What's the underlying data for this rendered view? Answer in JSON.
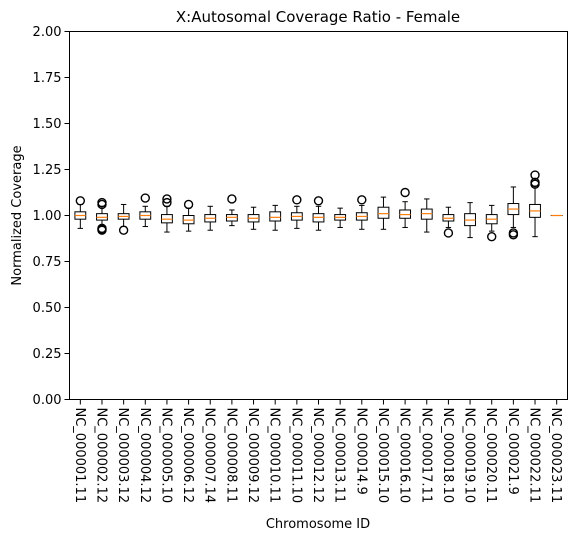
{
  "chart_data": {
    "type": "box",
    "title": "X:Autosomal Coverage Ratio - Female",
    "xlabel": "Chromosome ID",
    "ylabel": "Normalized Coverage",
    "ylim": [
      0,
      2
    ],
    "yticks": [
      "0.00",
      "0.25",
      "0.50",
      "0.75",
      "1.00",
      "1.25",
      "1.50",
      "1.75",
      "2.00"
    ],
    "grid": false,
    "colors": {
      "box": "#000000",
      "median": "#ff7f0e",
      "flier": "#000000"
    },
    "categories": [
      "NC_000001.11",
      "NC_000002.12",
      "NC_000003.12",
      "NC_000004.12",
      "NC_000005.10",
      "NC_000006.12",
      "NC_000007.14",
      "NC_000008.11",
      "NC_000009.12",
      "NC_000010.11",
      "NC_000011.10",
      "NC_000012.12",
      "NC_000013.11",
      "NC_000014.9",
      "NC_000015.10",
      "NC_000016.10",
      "NC_000017.11",
      "NC_000018.10",
      "NC_000019.10",
      "NC_000020.11",
      "NC_000021.9",
      "NC_000022.11",
      "NC_000023.11"
    ],
    "boxes": [
      {
        "whislo": 0.93,
        "q1": 0.98,
        "med": 1.0,
        "q3": 1.02,
        "whishi": 1.06,
        "fliers": [
          1.08
        ]
      },
      {
        "whislo": 0.94,
        "q1": 0.975,
        "med": 0.99,
        "q3": 1.01,
        "whishi": 1.05,
        "fliers": [
          1.07,
          1.06,
          0.93,
          0.925,
          0.92
        ]
      },
      {
        "whislo": 0.94,
        "q1": 0.98,
        "med": 0.995,
        "q3": 1.01,
        "whishi": 1.06,
        "fliers": [
          0.92
        ]
      },
      {
        "whislo": 0.94,
        "q1": 0.98,
        "med": 1.0,
        "q3": 1.02,
        "whishi": 1.05,
        "fliers": [
          1.095
        ]
      },
      {
        "whislo": 0.91,
        "q1": 0.96,
        "med": 0.98,
        "q3": 1.005,
        "whishi": 1.05,
        "fliers": [
          1.09,
          1.07
        ]
      },
      {
        "whislo": 0.915,
        "q1": 0.955,
        "med": 0.975,
        "q3": 1.0,
        "whishi": 1.04,
        "fliers": [
          1.06
        ]
      },
      {
        "whislo": 0.92,
        "q1": 0.965,
        "med": 0.985,
        "q3": 1.005,
        "whishi": 1.05,
        "fliers": []
      },
      {
        "whislo": 0.945,
        "q1": 0.97,
        "med": 0.99,
        "q3": 1.005,
        "whishi": 1.03,
        "fliers": [
          1.09
        ]
      },
      {
        "whislo": 0.925,
        "q1": 0.965,
        "med": 0.985,
        "q3": 1.005,
        "whishi": 1.045,
        "fliers": []
      },
      {
        "whislo": 0.92,
        "q1": 0.97,
        "med": 0.99,
        "q3": 1.02,
        "whishi": 1.055,
        "fliers": []
      },
      {
        "whislo": 0.93,
        "q1": 0.975,
        "med": 0.995,
        "q3": 1.015,
        "whishi": 1.05,
        "fliers": [
          1.085
        ]
      },
      {
        "whislo": 0.92,
        "q1": 0.965,
        "med": 0.99,
        "q3": 1.01,
        "whishi": 1.05,
        "fliers": [
          1.08
        ]
      },
      {
        "whislo": 0.935,
        "q1": 0.975,
        "med": 0.99,
        "q3": 1.005,
        "whishi": 1.04,
        "fliers": []
      },
      {
        "whislo": 0.925,
        "q1": 0.975,
        "med": 0.995,
        "q3": 1.015,
        "whishi": 1.055,
        "fliers": [
          1.085
        ]
      },
      {
        "whislo": 0.925,
        "q1": 0.985,
        "med": 1.01,
        "q3": 1.045,
        "whishi": 1.1,
        "fliers": []
      },
      {
        "whislo": 0.935,
        "q1": 0.985,
        "med": 1.005,
        "q3": 1.03,
        "whishi": 1.075,
        "fliers": [
          1.125
        ]
      },
      {
        "whislo": 0.91,
        "q1": 0.98,
        "med": 1.01,
        "q3": 1.035,
        "whishi": 1.09,
        "fliers": []
      },
      {
        "whislo": 0.935,
        "q1": 0.97,
        "med": 0.985,
        "q3": 1.005,
        "whishi": 1.045,
        "fliers": [
          0.905
        ]
      },
      {
        "whislo": 0.88,
        "q1": 0.945,
        "med": 0.975,
        "q3": 1.01,
        "whishi": 1.07,
        "fliers": []
      },
      {
        "whislo": 0.915,
        "q1": 0.955,
        "med": 0.98,
        "q3": 1.005,
        "whishi": 1.055,
        "fliers": [
          0.885
        ]
      },
      {
        "whislo": 0.935,
        "q1": 1.005,
        "med": 1.035,
        "q3": 1.065,
        "whishi": 1.155,
        "fliers": [
          0.905,
          0.895
        ]
      },
      {
        "whislo": 0.885,
        "q1": 0.99,
        "med": 1.025,
        "q3": 1.06,
        "whishi": 1.16,
        "fliers": [
          1.22,
          1.18,
          1.17
        ]
      },
      {
        "whislo": 1.0,
        "q1": 1.0,
        "med": 1.0,
        "q3": 1.0,
        "whishi": 1.0,
        "fliers": []
      }
    ]
  }
}
